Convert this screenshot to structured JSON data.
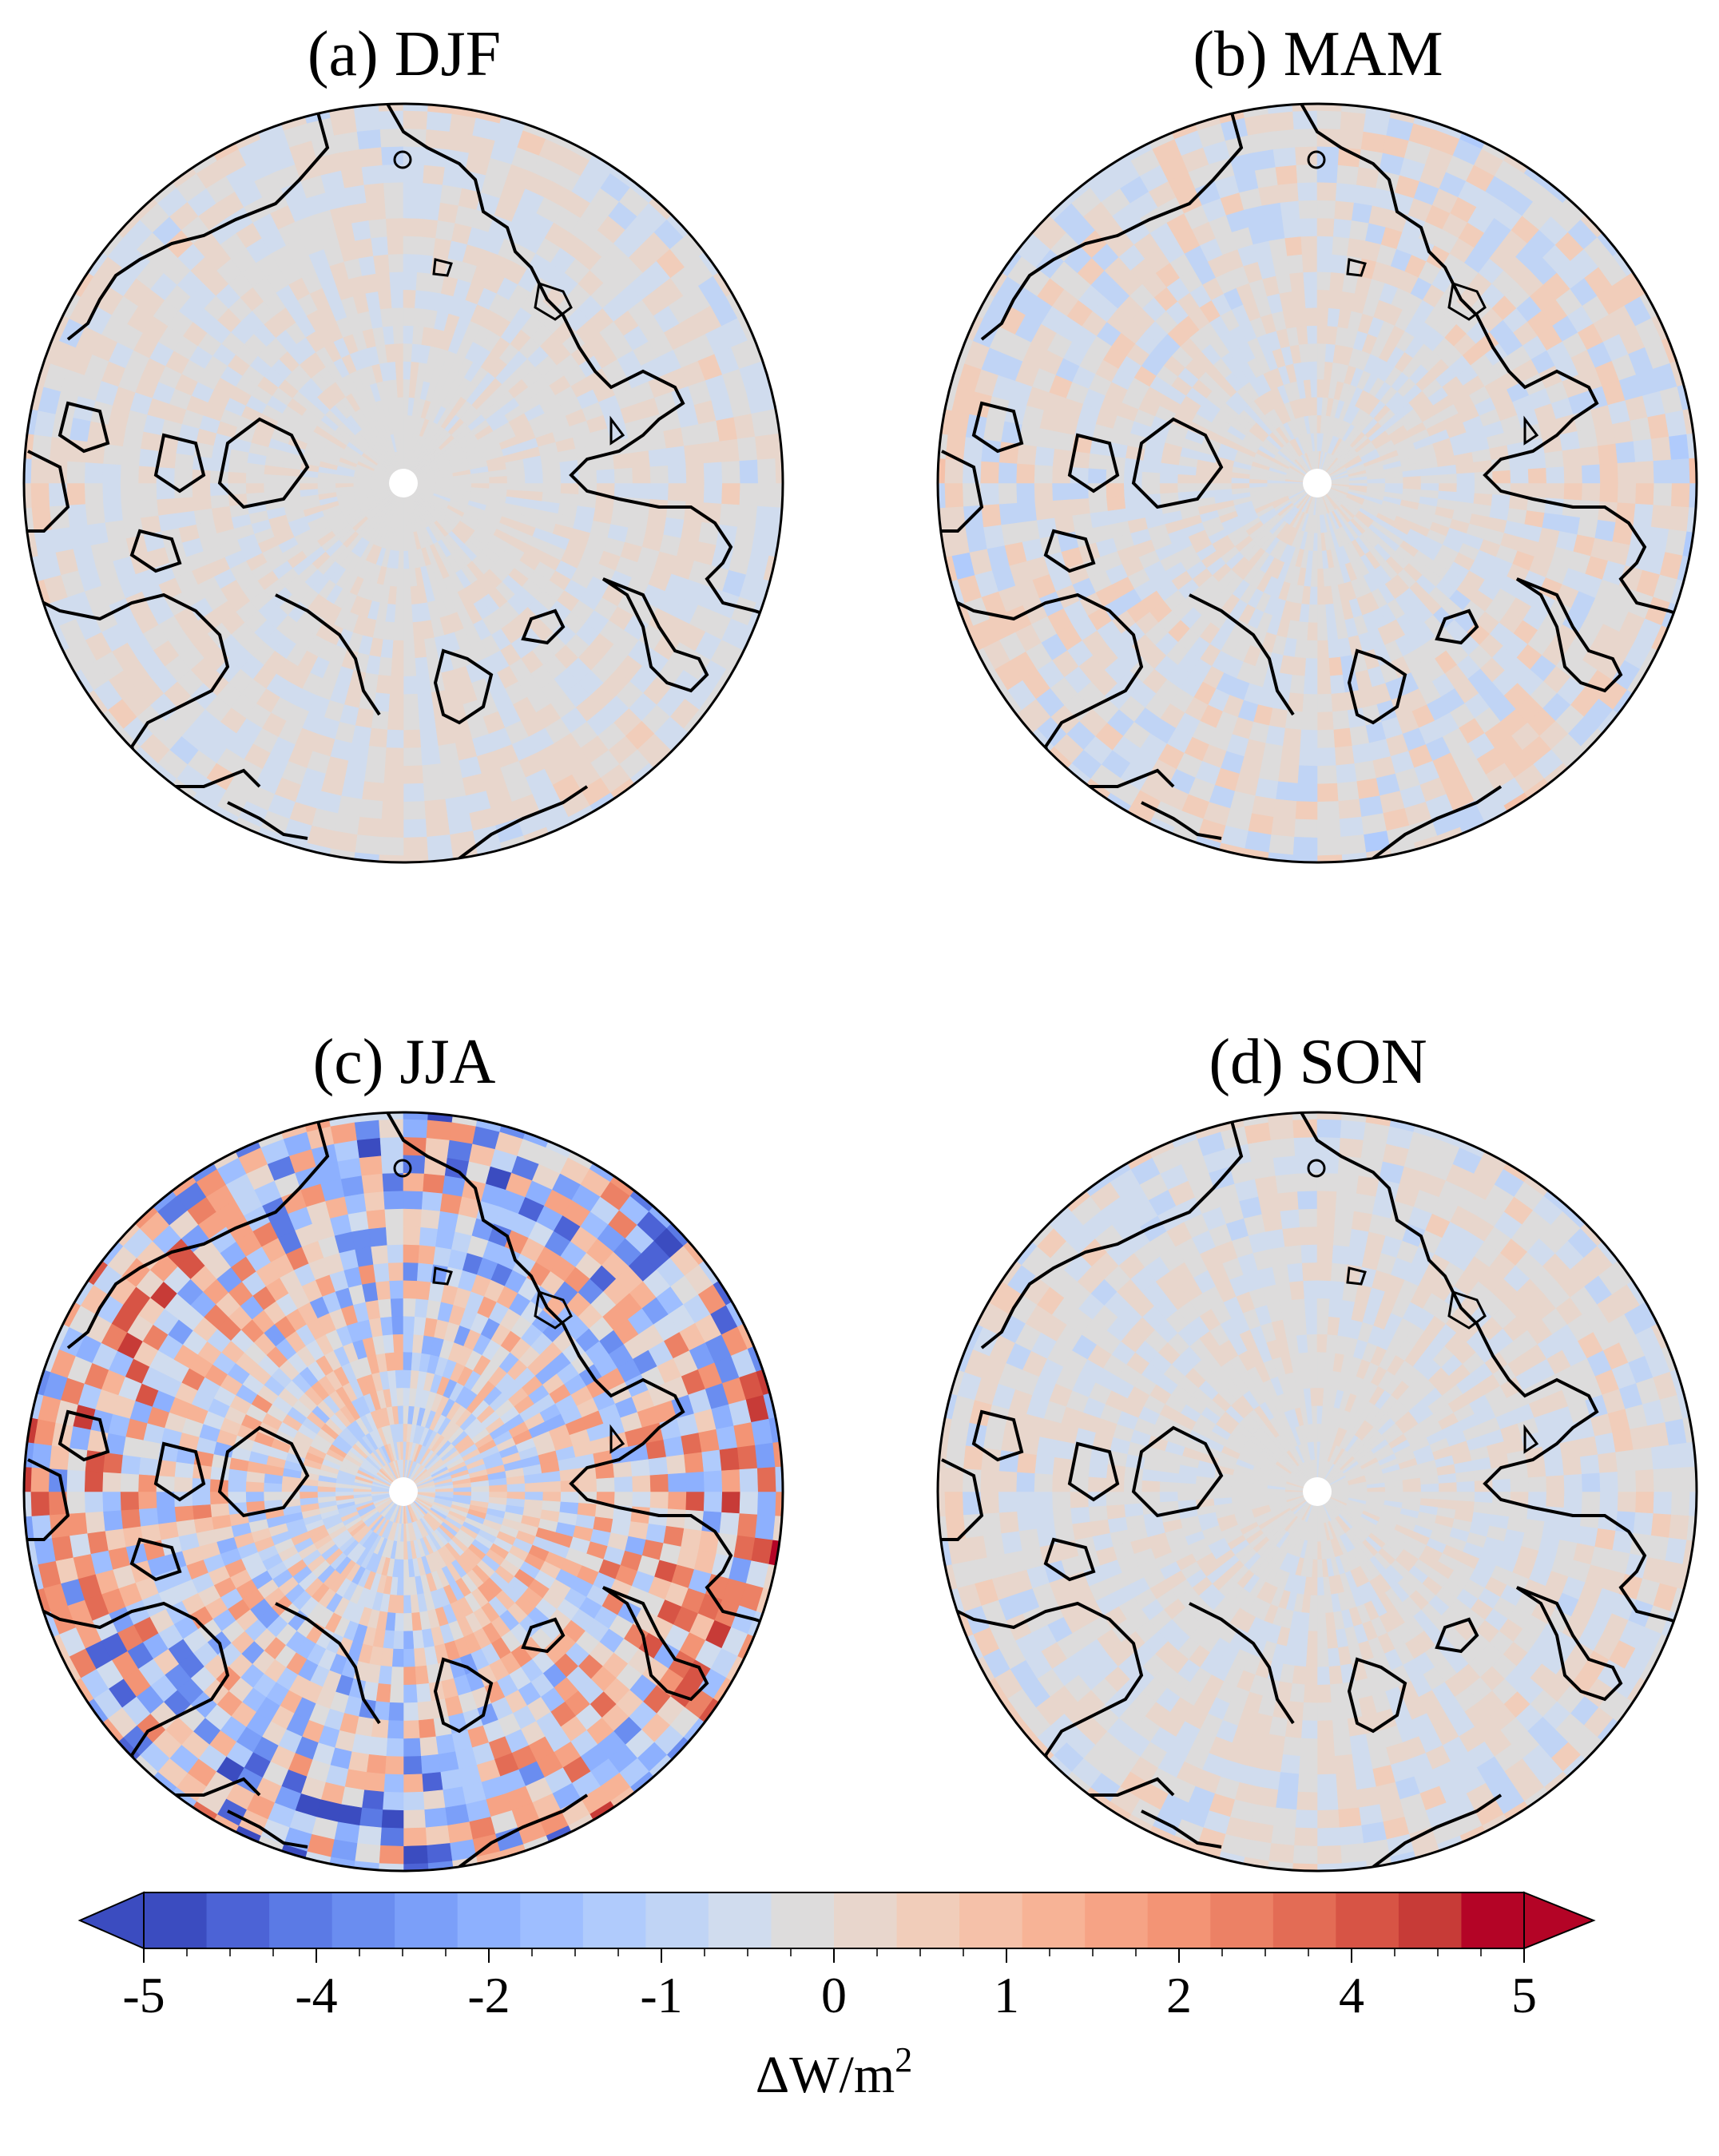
{
  "panels": [
    {
      "id": "djf",
      "title": "(a) DJF",
      "anomaly_intensity": 0.12
    },
    {
      "id": "mam",
      "title": "(b) MAM",
      "anomaly_intensity": 0.18
    },
    {
      "id": "jja",
      "title": "(c) JJA",
      "anomaly_intensity": 0.65
    },
    {
      "id": "son",
      "title": "(d) SON",
      "anomaly_intensity": 0.14
    }
  ],
  "colorbar": {
    "ticks": [
      "-5",
      "-4",
      "-2",
      "-1",
      "0",
      "1",
      "2",
      "4",
      "5"
    ],
    "tick_values": [
      -5,
      -4,
      -2,
      -1,
      0,
      1,
      2,
      4,
      5
    ],
    "unit_label": "ΔW/m",
    "unit_superscript": "2",
    "colors": [
      "#3b4cc0",
      "#4c63d6",
      "#5b7ae5",
      "#6a8df0",
      "#7b9ff9",
      "#8db0fe",
      "#9ebeff",
      "#b0cbfc",
      "#c0d4f5",
      "#d0dcee",
      "#dddcdc",
      "#e8d6cc",
      "#f1cdba",
      "#f5c1a9",
      "#f7b396",
      "#f6a385",
      "#f39475",
      "#ec8165",
      "#e36c55",
      "#d75445",
      "#c73b37",
      "#b40426"
    ],
    "extend": "both"
  }
}
